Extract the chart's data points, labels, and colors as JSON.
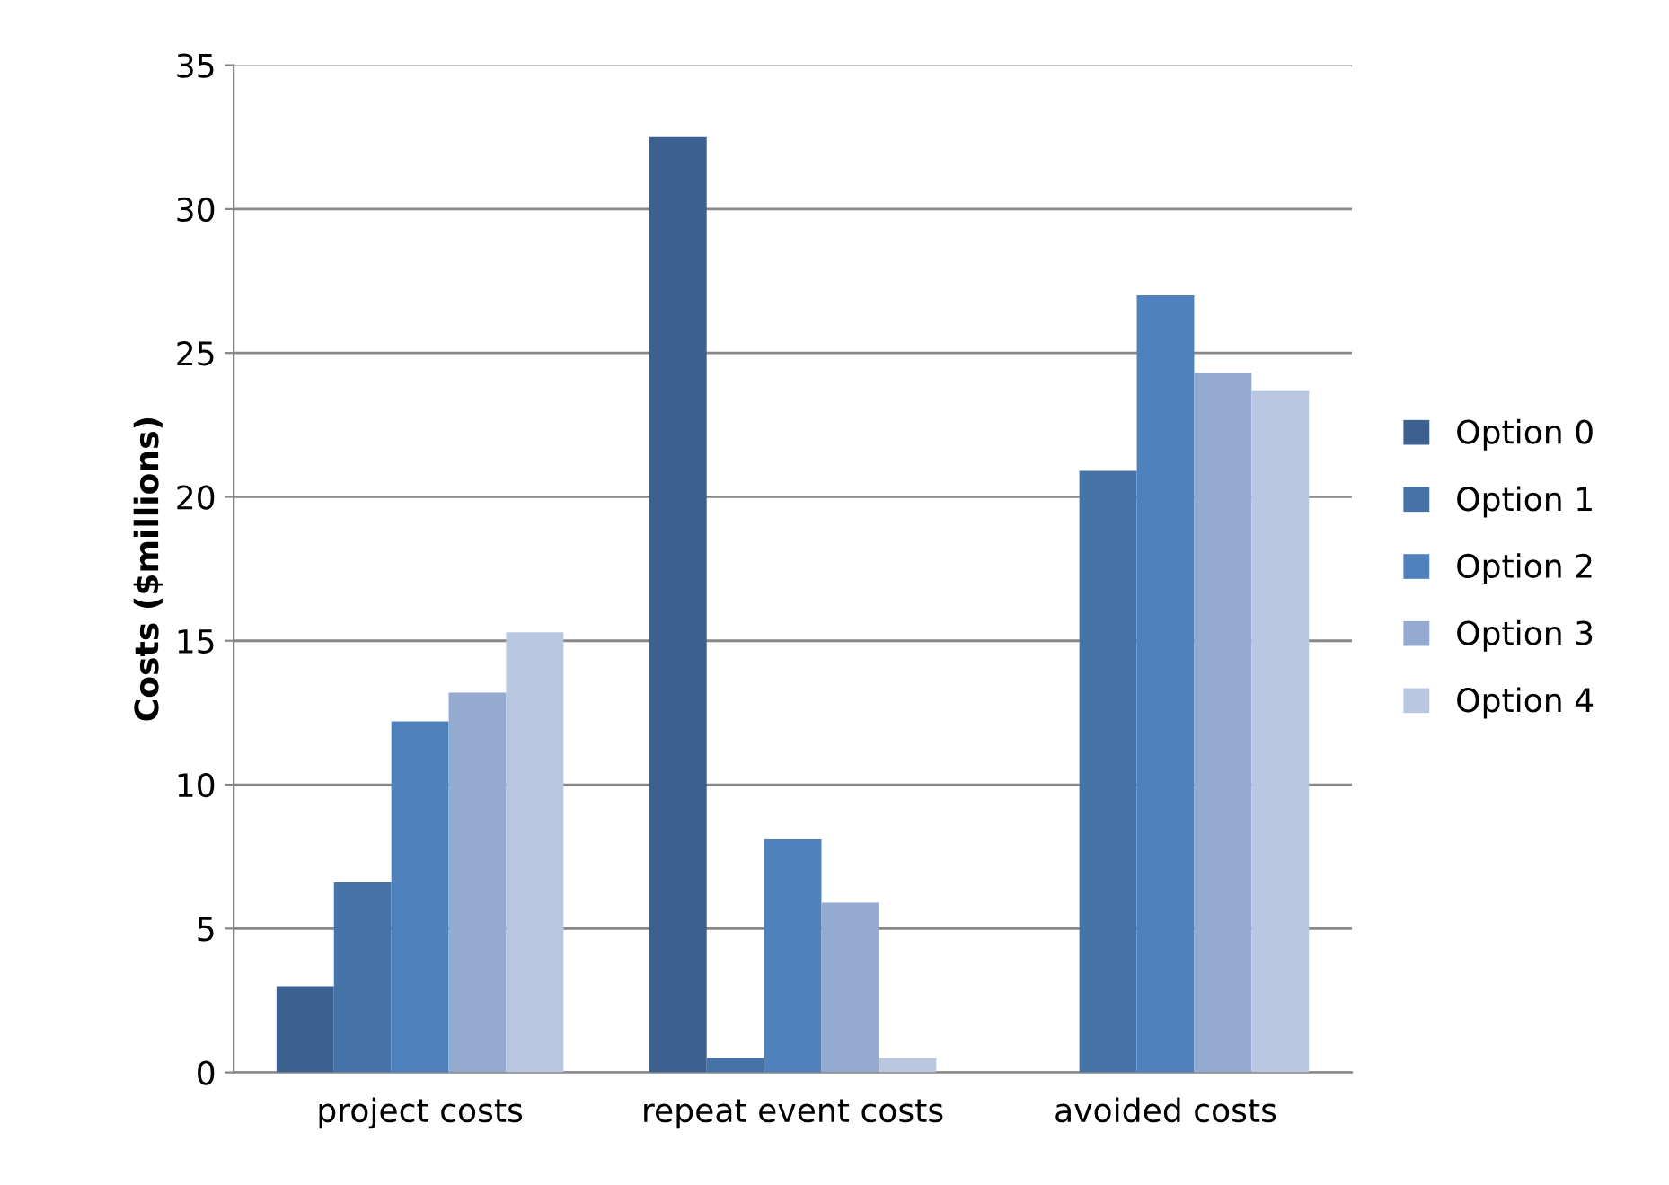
{
  "chart_data": {
    "type": "bar",
    "ylabel": "Costs ($millions)",
    "categories": [
      "project costs",
      "repeat event costs",
      "avoided costs"
    ],
    "series": [
      {
        "name": "Option 0",
        "color": "#3c6090",
        "values": [
          3.0,
          32.5,
          0
        ]
      },
      {
        "name": "Option 1",
        "color": "#4573a7",
        "values": [
          6.6,
          0.5,
          20.9
        ]
      },
      {
        "name": "Option 2",
        "color": "#4f81bd",
        "values": [
          12.2,
          8.1,
          27.0
        ]
      },
      {
        "name": "Option 3",
        "color": "#95aad0",
        "values": [
          13.2,
          5.9,
          24.3
        ]
      },
      {
        "name": "Option 4",
        "color": "#bac7e0",
        "values": [
          15.3,
          0.5,
          23.7
        ]
      }
    ],
    "ylim": [
      0,
      35
    ],
    "yticks": [
      0,
      5,
      10,
      15,
      20,
      25,
      30,
      35
    ],
    "grid": "y",
    "legend": "right"
  }
}
